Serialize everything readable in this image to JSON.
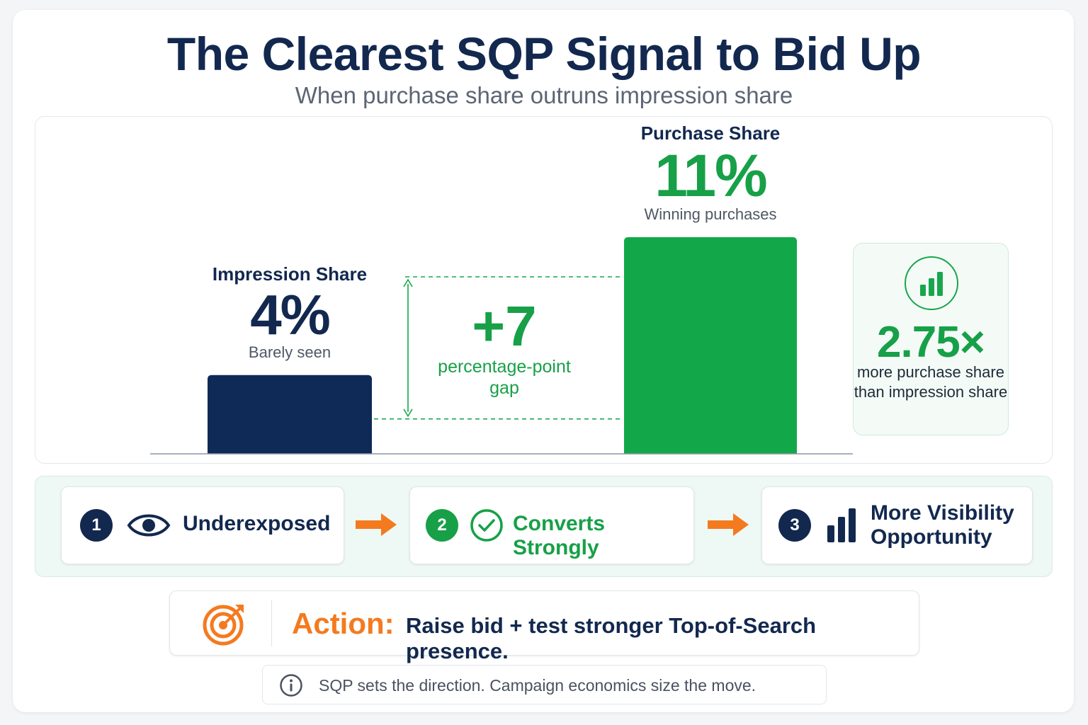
{
  "header": {
    "title": "The Clearest SQP Signal to Bid Up",
    "subtitle": "When purchase share outruns impression share"
  },
  "chart_data": {
    "type": "bar",
    "categories": [
      "Impression Share",
      "Purchase Share"
    ],
    "values": [
      4,
      11
    ],
    "unit": "%",
    "value_labels": [
      "4%",
      "11%"
    ],
    "sublabels": [
      "Barely seen",
      "Winning purchases"
    ],
    "colors": [
      "#0f2a56",
      "#12a84a"
    ],
    "gap": {
      "value": "+7",
      "label": "percentage-point gap"
    },
    "grid": false
  },
  "ratio": {
    "value": "2.75×",
    "text": "more purchase share than impression share",
    "icon": "bar-chart-icon"
  },
  "steps": [
    {
      "number": "1",
      "label": "Underexposed",
      "icon": "eye-icon",
      "color": "#12284f"
    },
    {
      "number": "2",
      "label": "Converts Strongly",
      "icon": "check-circle-icon",
      "color": "#17a048"
    },
    {
      "number": "3",
      "label": "More Visibility Opportunity",
      "icon": "bar-chart-icon",
      "color": "#12284f"
    }
  ],
  "action": {
    "label": "Action:",
    "text": "Raise bid + test stronger Top-of-Search presence.",
    "icon": "target-icon"
  },
  "note": {
    "text": "SQP sets the direction. Campaign economics size the move.",
    "icon": "info-icon"
  },
  "colors": {
    "navy": "#12284f",
    "green": "#17a048",
    "orange": "#f47a1f"
  }
}
